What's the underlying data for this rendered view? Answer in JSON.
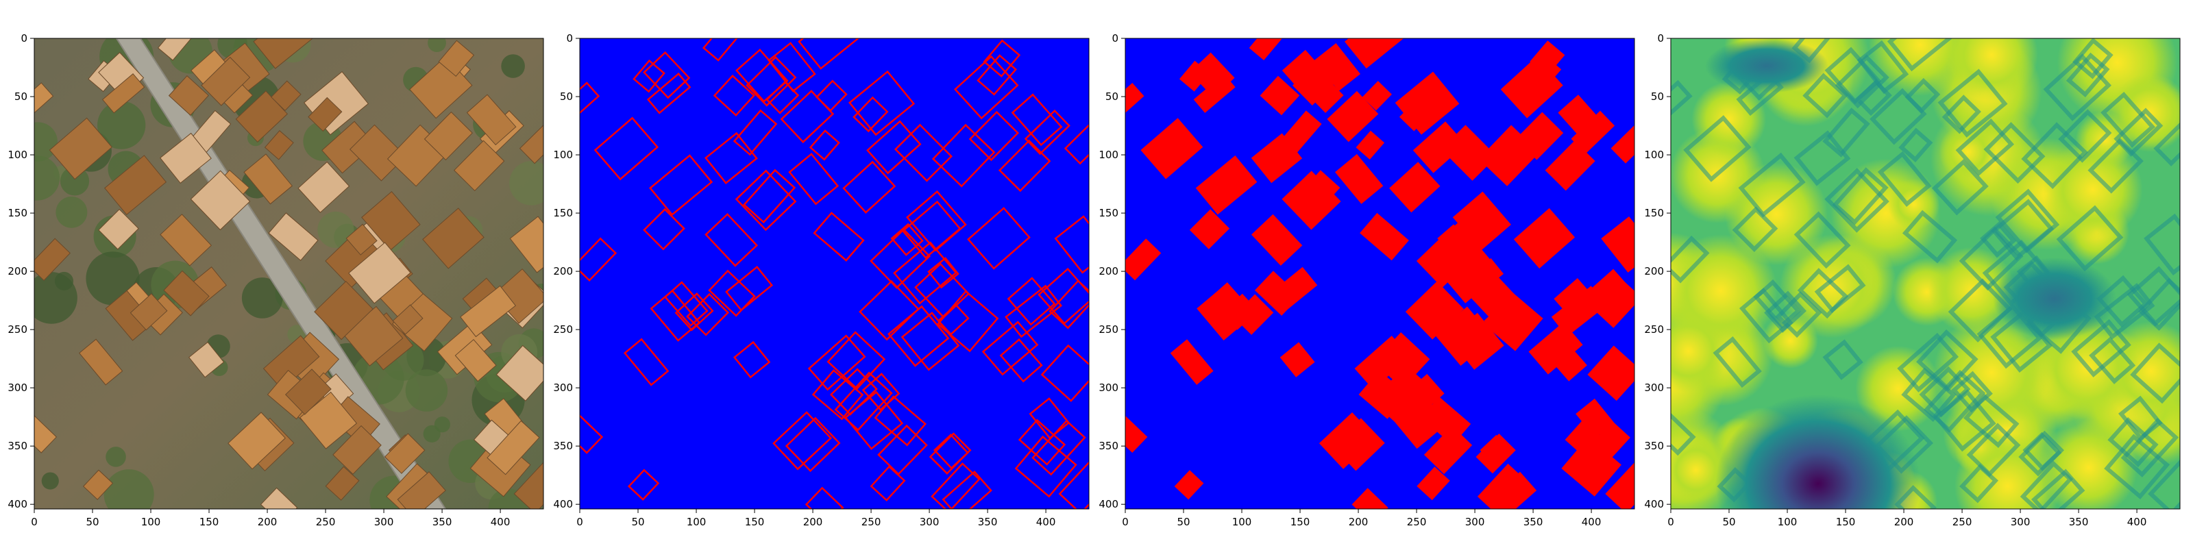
{
  "chart_data": [
    {
      "type": "heatmap",
      "panel": "aerial-image",
      "content": "RGB aerial photograph of a residential area with rooftops, trees and a diagonal road",
      "x_ticks": [
        0,
        50,
        100,
        150,
        200,
        250,
        300,
        350,
        400
      ],
      "y_ticks": [
        0,
        50,
        100,
        150,
        200,
        250,
        300,
        350,
        400
      ],
      "xlim": [
        0,
        437
      ],
      "ylim": [
        404,
        0
      ],
      "grid": false
    },
    {
      "type": "heatmap",
      "panel": "building-outlines",
      "content": "Red building polygon outlines on blue background",
      "colors": {
        "background": "#0000ff",
        "buildings": "#ff0000"
      },
      "x_ticks": [
        0,
        50,
        100,
        150,
        200,
        250,
        300,
        350,
        400
      ],
      "y_ticks": [
        0,
        50,
        100,
        150,
        200,
        250,
        300,
        350,
        400
      ],
      "xlim": [
        0,
        437
      ],
      "ylim": [
        404,
        0
      ],
      "grid": false
    },
    {
      "type": "heatmap",
      "panel": "building-mask",
      "content": "Filled red building footprints on blue background",
      "colors": {
        "background": "#0000ff",
        "buildings": "#ff0000"
      },
      "x_ticks": [
        0,
        50,
        100,
        150,
        200,
        250,
        300,
        350,
        400
      ],
      "y_ticks": [
        0,
        50,
        100,
        150,
        200,
        250,
        300,
        350,
        400
      ],
      "xlim": [
        0,
        437
      ],
      "ylim": [
        404,
        0
      ],
      "grid": false
    },
    {
      "type": "heatmap",
      "panel": "distance-map",
      "content": "Distance transform to building boundaries shown with viridis colormap",
      "colormap": "viridis",
      "colors": {
        "low": "#440154",
        "mid": "#21918c",
        "high": "#fde725"
      },
      "x_ticks": [
        0,
        50,
        100,
        150,
        200,
        250,
        300,
        350,
        400
      ],
      "y_ticks": [
        0,
        50,
        100,
        150,
        200,
        250,
        300,
        350,
        400
      ],
      "xlim": [
        0,
        437
      ],
      "ylim": [
        404,
        0
      ],
      "grid": false
    }
  ]
}
